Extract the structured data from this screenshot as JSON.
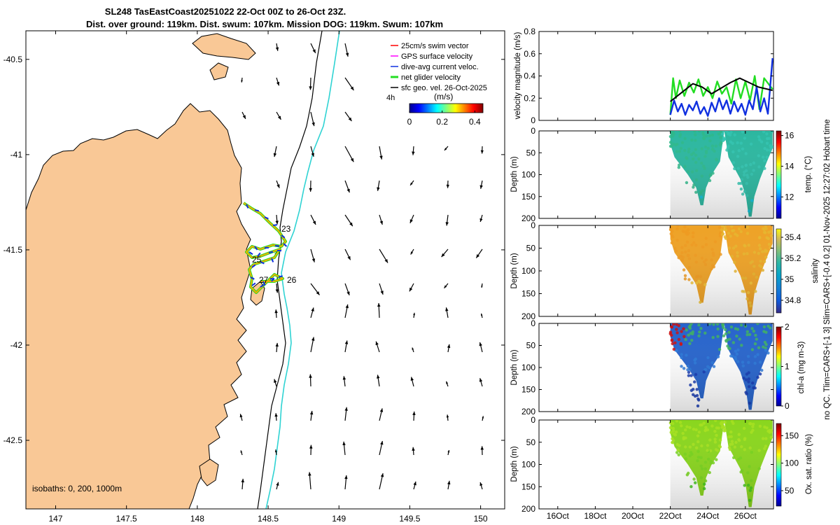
{
  "title": {
    "line1": "SL248 TasEastCoast20251022 22-Oct 00Z to 26-Oct 23Z.",
    "line2": "Dist. over ground: 119km. Dist. swum: 107km. Mission DOG: 119km. Swum: 107km"
  },
  "side_note": "no QC. Tlim=CARS+[-1 3] Slim=CARS+[-0.4 0.2] 01-Nov-2025 12:27:02 Hobart time",
  "colors": {
    "land": "#f9c896",
    "isobath200": "#000000",
    "isobath1000": "#2fd3d3",
    "track": "#f0b000",
    "gps": "#ff00ff",
    "dac": "#1030e0",
    "net": "#22dd22",
    "sfc": "#000000"
  },
  "chart_data": [
    {
      "type": "map",
      "name": "map",
      "xticks": [
        "147",
        "147.5",
        "148",
        "148.5",
        "149",
        "149.5",
        "150"
      ],
      "xtick_values": [
        147,
        147.5,
        148,
        148.5,
        149,
        149.5,
        150
      ],
      "yticks": [
        "-40.5",
        "-41",
        "-41.5",
        "-42",
        "-42.5"
      ],
      "ytick_values": [
        -40.5,
        -41,
        -41.5,
        -42,
        -42.5
      ],
      "xlim": [
        146.79,
        150.17
      ],
      "ylim": [
        -42.86,
        -40.35
      ],
      "legend": {
        "position": "top-right",
        "entries": [
          {
            "label": "25cm/s swim vector",
            "color": "#ff0000"
          },
          {
            "label": "GPS surface velocity",
            "color": "#ff00ff"
          },
          {
            "label": "dive-avg current veloc.",
            "color": "#1030e0"
          },
          {
            "label": "net glider velocity",
            "color": "#22dd22"
          },
          {
            "label": "sfc geo. vel. 26-Oct-2025",
            "color": "#000000"
          }
        ],
        "age_label": "4h",
        "colorbar_unit": "(m/s)",
        "colorbar_ticks": [
          "0",
          "0.2",
          "0.4"
        ],
        "colorbar_range": [
          0,
          0.45
        ]
      },
      "isobath_label": "isobaths: 0, 200, 1000m",
      "track_labels": [
        {
          "text": "23",
          "lon": 148.6,
          "lat": -41.38
        },
        {
          "text": "25",
          "lon": 148.45,
          "lat": -41.52
        },
        {
          "text": "27",
          "lon": 148.44,
          "lat": -41.64
        },
        {
          "text": "26",
          "lon": 148.63,
          "lat": -41.63
        }
      ]
    },
    {
      "type": "line",
      "name": "velocity",
      "ylabel": "velocity magnitude (m/s)",
      "ylim": [
        0,
        0.8
      ],
      "yticks": [
        0,
        0.2,
        0.4,
        0.6,
        0.8
      ],
      "xlim": [
        15,
        27.5
      ],
      "series": [
        {
          "color": "#22dd22",
          "x": [
            22,
            22.15,
            22.3,
            22.5,
            22.75,
            23.0,
            23.25,
            23.5,
            23.75,
            24.0,
            24.25,
            24.5,
            24.75,
            25.0,
            25.25,
            25.5,
            25.75,
            26.0,
            26.25,
            26.5,
            26.75,
            27.0,
            27.45
          ],
          "y": [
            0.05,
            0.38,
            0.2,
            0.36,
            0.22,
            0.34,
            0.25,
            0.37,
            0.22,
            0.3,
            0.2,
            0.35,
            0.24,
            0.3,
            0.15,
            0.37,
            0.2,
            0.35,
            0.18,
            0.4,
            0.1,
            0.38,
            0.28
          ]
        },
        {
          "color": "#1030e0",
          "x": [
            22,
            22.2,
            22.4,
            22.6,
            22.8,
            23.0,
            23.2,
            23.4,
            23.6,
            23.8,
            24.0,
            24.2,
            24.4,
            24.6,
            24.8,
            25.0,
            25.2,
            25.4,
            25.6,
            25.8,
            26.0,
            26.2,
            26.4,
            26.6,
            26.8,
            27.0,
            27.2,
            27.45
          ],
          "y": [
            0.05,
            0.18,
            0.08,
            0.15,
            0.05,
            0.14,
            0.09,
            0.17,
            0.06,
            0.12,
            0.04,
            0.16,
            0.08,
            0.2,
            0.1,
            0.18,
            0.06,
            0.17,
            0.08,
            0.15,
            0.05,
            0.18,
            0.1,
            0.3,
            0.08,
            0.2,
            0.06,
            0.56
          ]
        },
        {
          "color": "#000000",
          "x": [
            22,
            22.6,
            23.2,
            23.7,
            24.2,
            24.7,
            25.2,
            25.7,
            26.2,
            26.7,
            27.45
          ],
          "y": [
            0.17,
            0.25,
            0.33,
            0.3,
            0.24,
            0.29,
            0.34,
            0.38,
            0.34,
            0.3,
            0.27
          ]
        }
      ]
    },
    {
      "type": "heatmap",
      "name": "temperature",
      "ylabel": "Depth (m)",
      "cbar_label": "temp. (°C)",
      "ylim": [
        0,
        200
      ],
      "yticks": [
        0,
        50,
        100,
        150,
        200
      ],
      "xlim": [
        15,
        27.5
      ],
      "colorbar_range": [
        10.6,
        16.3
      ],
      "colorbar_ticks": [
        "12",
        "14",
        "16"
      ],
      "colorbar_tick_values": [
        12,
        14,
        16
      ],
      "data_x_range": [
        22,
        27.45
      ],
      "data_value_range": [
        13.0,
        14.6
      ]
    },
    {
      "type": "heatmap",
      "name": "salinity",
      "ylabel": "Depth (m)",
      "cbar_label": "salinity",
      "ylim": [
        0,
        200
      ],
      "yticks": [
        0,
        50,
        100,
        150,
        200
      ],
      "xlim": [
        15,
        27.5
      ],
      "colorbar_range": [
        34.68,
        35.48
      ],
      "colorbar_ticks": [
        "34.8",
        "35",
        "35.2",
        "35.4"
      ],
      "colorbar_tick_values": [
        34.8,
        35,
        35.2,
        35.4
      ],
      "data_x_range": [
        22,
        27.45
      ],
      "data_value_range": [
        35.15,
        35.38
      ]
    },
    {
      "type": "heatmap",
      "name": "chla",
      "ylabel": "Depth (m)",
      "cbar_label": "chl-a (mg m-3)",
      "ylim": [
        0,
        200
      ],
      "yticks": [
        0,
        50,
        100,
        150,
        200
      ],
      "xlim": [
        15,
        27.5
      ],
      "colorbar_range": [
        0,
        2
      ],
      "colorbar_ticks": [
        "0",
        "1",
        "2"
      ],
      "colorbar_tick_values": [
        0,
        1,
        2
      ],
      "data_x_range": [
        22,
        27.45
      ],
      "data_value_range": [
        0.1,
        1.9
      ]
    },
    {
      "type": "heatmap",
      "name": "oxygen",
      "ylabel": "Depth (m)",
      "cbar_label": "Ox. sat. ratio (%)",
      "ylim": [
        0,
        200
      ],
      "yticks": [
        0,
        50,
        100,
        150,
        200
      ],
      "xlim": [
        15,
        27.5
      ],
      "colorbar_range": [
        22,
        172
      ],
      "colorbar_ticks": [
        "50",
        "100",
        "150"
      ],
      "colorbar_tick_values": [
        50,
        100,
        150
      ],
      "data_x_range": [
        22,
        27.45
      ],
      "data_value_range": [
        112,
        130
      ]
    }
  ],
  "time_axis": {
    "ticks": [
      "16Oct",
      "18Oct",
      "20Oct",
      "22Oct",
      "24Oct",
      "26Oct"
    ],
    "tick_values": [
      16,
      18,
      20,
      22,
      24,
      26
    ]
  }
}
